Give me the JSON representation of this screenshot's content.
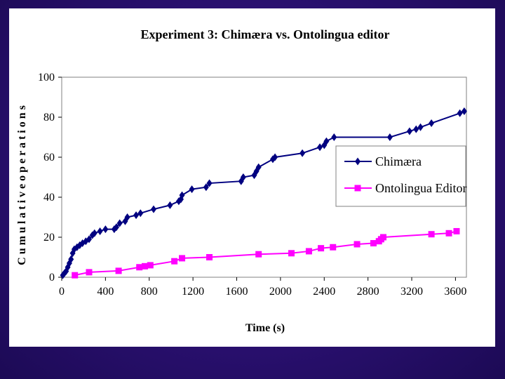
{
  "chart_data": {
    "type": "line",
    "title": "Experiment 3: Chimæra vs. Ontolingua editor",
    "xlabel": "Time (s)",
    "ylabel": "C u m u l a t i v e  o p e r a t i o n s",
    "xlim": [
      0,
      3700
    ],
    "ylim": [
      0,
      100
    ],
    "xticks": [
      0,
      400,
      800,
      1200,
      1600,
      2000,
      2400,
      2800,
      3200,
      3600
    ],
    "yticks": [
      0,
      20,
      40,
      60,
      80,
      100
    ],
    "grid": false,
    "legend_position": "right",
    "series": [
      {
        "name": "Chimæra",
        "color": "#000080",
        "marker": "diamond",
        "x": [
          10,
          25,
          40,
          55,
          70,
          85,
          100,
          115,
          140,
          165,
          190,
          220,
          250,
          280,
          300,
          350,
          400,
          480,
          500,
          530,
          580,
          600,
          680,
          720,
          840,
          990,
          1070,
          1090,
          1100,
          1190,
          1320,
          1350,
          1640,
          1660,
          1760,
          1780,
          1800,
          1930,
          1950,
          2200,
          2360,
          2400,
          2420,
          2490,
          3000,
          3180,
          3240,
          3280,
          3380,
          3640,
          3680
        ],
        "y": [
          1,
          2,
          3,
          5,
          7,
          9,
          12,
          14,
          15,
          16,
          17,
          18,
          19,
          21,
          22,
          23,
          24,
          24,
          25,
          27,
          28,
          30,
          31,
          32,
          34,
          36,
          38,
          39,
          41,
          44,
          45,
          47,
          48,
          50,
          51,
          53,
          55,
          59,
          60,
          62,
          65,
          66,
          68,
          70,
          70,
          73,
          74,
          75,
          77,
          82,
          83
        ]
      },
      {
        "name": "Ontolingua Editor",
        "color": "#ff00ff",
        "marker": "square",
        "x": [
          120,
          250,
          520,
          710,
          760,
          810,
          1030,
          1100,
          1350,
          1800,
          2100,
          2260,
          2370,
          2480,
          2700,
          2850,
          2900,
          2920,
          2940,
          3380,
          3540,
          3610
        ],
        "y": [
          1,
          2.5,
          3.2,
          5,
          5.5,
          6,
          8,
          9.5,
          10,
          11.5,
          12,
          13,
          14.5,
          15,
          16.5,
          17,
          18,
          19,
          20,
          21.5,
          22,
          23
        ]
      }
    ]
  }
}
